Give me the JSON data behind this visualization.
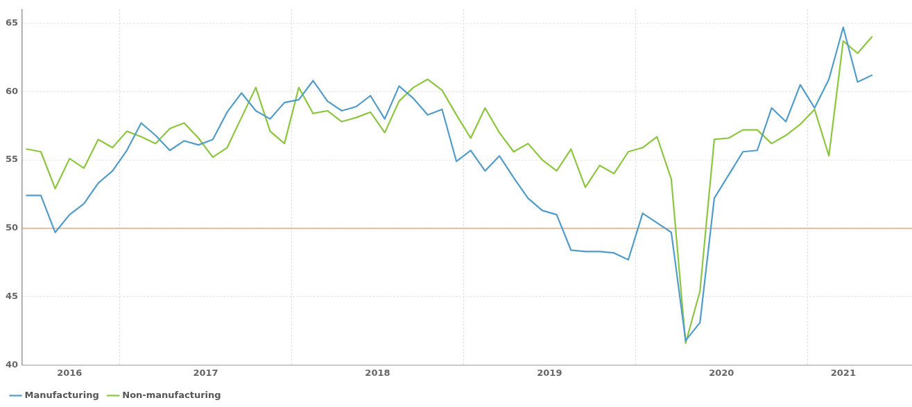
{
  "chart_data": {
    "type": "line",
    "x": [
      "2016-06-16",
      "2016-07-16",
      "2016-08-16",
      "2016-09-16",
      "2016-10-16",
      "2016-11-16",
      "2016-12-16",
      "2017-01-16",
      "2017-02-16",
      "2017-03-16",
      "2017-04-16",
      "2017-05-16",
      "2017-06-16",
      "2017-07-16",
      "2017-08-16",
      "2017-09-16",
      "2017-10-16",
      "2017-11-16",
      "2017-12-16",
      "2018-01-16",
      "2018-02-16",
      "2018-03-16",
      "2018-04-16",
      "2018-05-16",
      "2018-06-16",
      "2018-07-16",
      "2018-08-16",
      "2018-09-16",
      "2018-10-16",
      "2018-11-16",
      "2018-12-16",
      "2019-01-16",
      "2019-02-16",
      "2019-03-16",
      "2019-04-16",
      "2019-05-16",
      "2019-06-16",
      "2019-07-16",
      "2019-08-16",
      "2019-09-16",
      "2019-10-16",
      "2019-11-16",
      "2019-12-16",
      "2020-01-16",
      "2020-02-16",
      "2020-03-16",
      "2020-04-16",
      "2020-05-16",
      "2020-06-16",
      "2020-07-16",
      "2020-08-16",
      "2020-09-16",
      "2020-10-16",
      "2020-11-16",
      "2020-12-16",
      "2021-01-16",
      "2021-02-16",
      "2021-03-16",
      "2021-04-16",
      "2021-05-16"
    ],
    "series": [
      {
        "name": "Manufacturing",
        "color": "#4f9cc8",
        "values": [
          52.4,
          52.4,
          49.7,
          51.0,
          51.8,
          53.3,
          54.2,
          55.7,
          57.7,
          56.8,
          55.7,
          56.4,
          56.1,
          56.5,
          58.5,
          59.9,
          58.6,
          58.0,
          59.2,
          59.4,
          60.8,
          59.3,
          58.6,
          58.9,
          59.7,
          58.0,
          60.4,
          59.5,
          58.3,
          58.7,
          54.9,
          55.7,
          54.2,
          55.3,
          53.7,
          52.2,
          51.3,
          51.0,
          48.4,
          48.3,
          48.3,
          48.2,
          47.7,
          51.1,
          50.4,
          49.7,
          41.8,
          43.1,
          52.2,
          53.9,
          55.6,
          55.7,
          58.8,
          57.8,
          60.5,
          58.8,
          60.9,
          64.7,
          60.7,
          61.2
        ]
      },
      {
        "name": "Non-manufacturing",
        "color": "#8cc63f",
        "values": [
          55.8,
          55.6,
          52.9,
          55.1,
          54.4,
          56.5,
          55.9,
          57.1,
          56.7,
          56.2,
          57.3,
          57.7,
          56.6,
          55.2,
          55.9,
          58.1,
          60.3,
          57.1,
          56.2,
          60.3,
          58.4,
          58.6,
          57.8,
          58.1,
          58.5,
          57.0,
          59.3,
          60.3,
          60.9,
          60.1,
          58.3,
          56.6,
          58.8,
          57.0,
          55.6,
          56.2,
          55.0,
          54.2,
          55.8,
          53.0,
          54.6,
          54.0,
          55.6,
          55.9,
          56.7,
          53.6,
          41.6,
          45.4,
          56.5,
          56.6,
          57.2,
          57.2,
          56.2,
          56.8,
          57.6,
          58.7,
          55.3,
          63.7,
          62.8,
          64.0
        ]
      }
    ],
    "xlim": [
      "2016-06-07",
      "2021-08-10"
    ],
    "xticks": [
      {
        "value": "2016-09-16",
        "label": "2016"
      },
      {
        "value": "2017-01-01",
        "label": null
      },
      {
        "value": "2017-07-01",
        "label": "2017"
      },
      {
        "value": "2018-01-01",
        "label": null
      },
      {
        "value": "2018-07-01",
        "label": "2018"
      },
      {
        "value": "2019-01-01",
        "label": null
      },
      {
        "value": "2019-07-01",
        "label": "2019"
      },
      {
        "value": "2020-01-01",
        "label": null
      },
      {
        "value": "2020-07-01",
        "label": "2020"
      },
      {
        "value": "2021-01-01",
        "label": null
      },
      {
        "value": "2021-03-16",
        "label": "2021"
      }
    ],
    "ylim": [
      40,
      66
    ],
    "yticks": [
      40,
      45,
      50,
      55,
      60,
      65
    ],
    "ref_lines": [
      {
        "axis": "y",
        "value": 50,
        "label": null,
        "color": "#e8956a"
      }
    ],
    "grid": true,
    "legend": "bottom left",
    "marker": "none",
    "line_style": "solid"
  }
}
